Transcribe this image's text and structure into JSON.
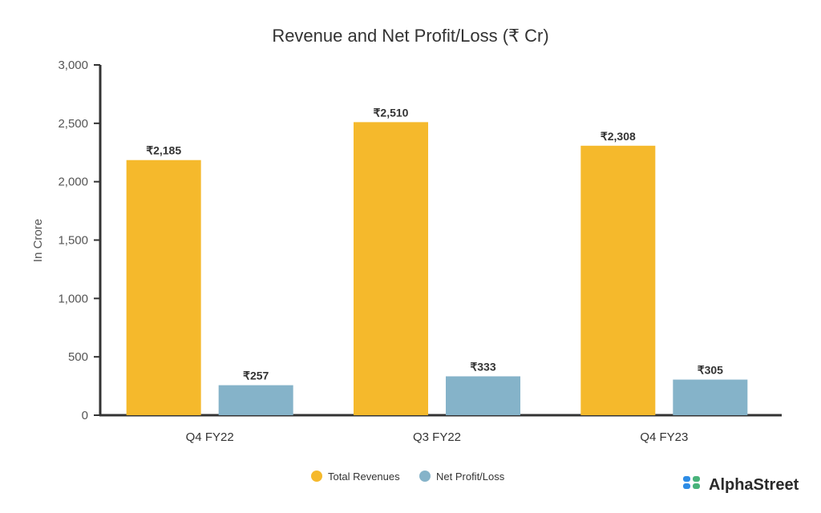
{
  "chart_data": {
    "type": "bar",
    "title": "Revenue and Net Profit/Loss (₹ Cr)",
    "xlabel": "",
    "ylabel": "In Crore",
    "ylim": [
      0,
      3000
    ],
    "yticks": [
      0,
      500,
      1000,
      1500,
      2000,
      2500,
      3000
    ],
    "ytick_labels": [
      "0",
      "500",
      "1,000",
      "1,500",
      "2,000",
      "2,500",
      "3,000"
    ],
    "categories": [
      "Q4 FY22",
      "Q3 FY22",
      "Q4 FY23"
    ],
    "series": [
      {
        "name": "Total Revenues",
        "color": "#F5B92C",
        "values": [
          2185,
          2510,
          2308
        ],
        "labels": [
          "₹2,185",
          "₹2,510",
          "₹2,308"
        ]
      },
      {
        "name": "Net Profit/Loss",
        "color": "#85B3C9",
        "values": [
          257,
          333,
          305
        ],
        "labels": [
          "₹257",
          "₹333",
          "₹305"
        ]
      }
    ],
    "legend_position": "bottom-center",
    "grid": false
  },
  "branding": {
    "logo_text": "AlphaStreet"
  }
}
